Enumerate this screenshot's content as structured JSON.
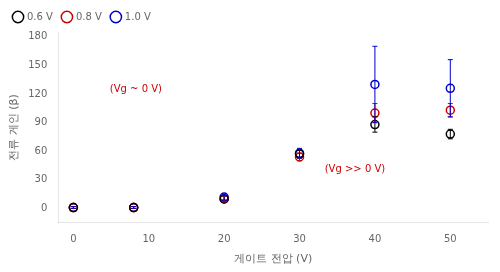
{
  "chart_data": {
    "type": "scatter",
    "xlabel": "게이트 전압 (V)",
    "ylabel": "전류 게인 (β)",
    "xlim": [
      -2,
      55
    ],
    "ylim": [
      -15,
      185
    ],
    "xticks": [
      0,
      10,
      20,
      30,
      40,
      50
    ],
    "yticks": [
      0,
      30,
      60,
      90,
      120,
      150,
      180
    ],
    "grid": false,
    "legend": "upper left",
    "annotations": [
      "(Vg ~ 0 V)",
      "(Vg >> 0 V)"
    ],
    "series": [
      {
        "name": "0.6 V",
        "color": "#000000",
        "marker": "circle",
        "x": [
          0,
          8,
          20,
          30,
          40,
          50
        ],
        "values": [
          1,
          1,
          10,
          57,
          88,
          78
        ],
        "yerr": [
          1,
          1,
          3,
          4,
          8,
          5
        ]
      },
      {
        "name": "0.8 V",
        "color": "#cc0000",
        "marker": "circle",
        "x": [
          0,
          8,
          20,
          30,
          40,
          50
        ],
        "values": [
          1,
          1,
          10,
          54,
          100,
          103
        ],
        "yerr": [
          1,
          1,
          3,
          4,
          10,
          7
        ]
      },
      {
        "name": "1.0 V",
        "color": "#0000cc",
        "marker": "circle",
        "x": [
          0,
          8,
          20,
          30,
          40,
          50
        ],
        "values": [
          1,
          1,
          12,
          58,
          130,
          126
        ],
        "yerr": [
          1,
          1,
          3,
          5,
          40,
          30
        ]
      }
    ]
  }
}
